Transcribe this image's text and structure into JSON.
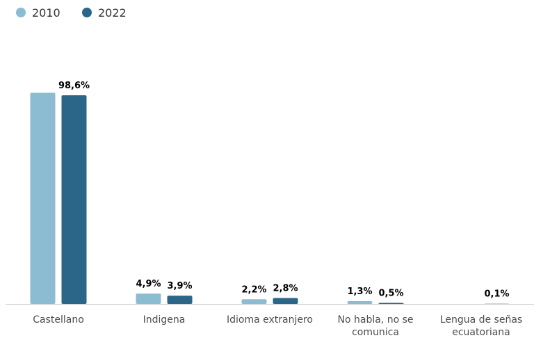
{
  "chart_data": {
    "type": "bar",
    "title": "",
    "xlabel": "",
    "ylabel": "",
    "legend_position": "top-left",
    "grid": false,
    "ylim": [
      0,
      100
    ],
    "categories": [
      [
        "Castellano"
      ],
      [
        "Indigena"
      ],
      [
        "Idioma extranjero"
      ],
      [
        "No habla, no se",
        "comunica"
      ],
      [
        "Lengua de señas",
        "ecuatoriana"
      ]
    ],
    "series": [
      {
        "name": "2010",
        "color": "#8bbcd2",
        "values": [
          99.8,
          4.9,
          2.2,
          1.3,
          null
        ],
        "labels": [
          "",
          "4,9%",
          "2,2%",
          "1,3%",
          ""
        ]
      },
      {
        "name": "2022",
        "color": "#2b6689",
        "values": [
          98.6,
          3.9,
          2.8,
          0.5,
          0.1
        ],
        "labels": [
          "98,6%",
          "3,9%",
          "2,8%",
          "0,5%",
          "0,1%"
        ]
      }
    ]
  }
}
